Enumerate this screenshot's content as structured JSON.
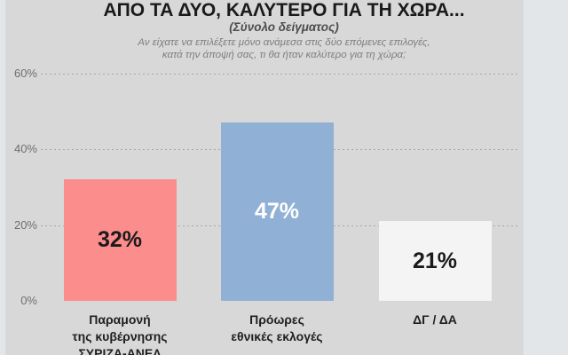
{
  "chart_data": {
    "type": "bar",
    "title": "ΑΠΟ ΤΑ ΔΥΟ, ΚΑΛΥΤΕΡΟ ΓΙΑ ΤΗ ΧΩΡΑ...",
    "subtitle": "(Σύνολο δείγματος)",
    "question_line1": "Αν είχατε να επιλέξετε μόνο ανάμεσα στις δύο επόμενες επιλογές,",
    "question_line2": "κατά την άποψή σας, τι θα ήταν καλύτερο για τη χώρα;",
    "categories": [
      "Παραμονή της κυβέρνησης ΣΥΡΙΖΑ-ΑΝΕΛ",
      "Πρόωρες εθνικές εκλογές",
      "ΔΓ / ΔΑ"
    ],
    "category_label_lines": [
      [
        "Παραμονή",
        "της κυβέρνησης",
        "ΣΥΡΙΖΑ-ΑΝΕΛ"
      ],
      [
        "Πρόωρες",
        "εθνικές εκλογές"
      ],
      [
        "ΔΓ / ΔΑ"
      ]
    ],
    "values": [
      32,
      47,
      21
    ],
    "value_labels": [
      "32%",
      "47%",
      "21%"
    ],
    "bar_colors": [
      "#fc8d8d",
      "#90b0d5",
      "#f4f4f4"
    ],
    "value_label_colors": [
      "#1a1a1a",
      "#ffffff",
      "#1a1a1a"
    ],
    "y_axis": {
      "ticks": [
        {
          "label": "60%",
          "value": 60
        },
        {
          "label": "40%",
          "value": 40
        },
        {
          "label": "20%",
          "value": 20
        },
        {
          "label": "0%",
          "value": 0
        }
      ],
      "ylim": [
        0,
        60
      ],
      "grid": "dashed-horizontal"
    },
    "legend": "none",
    "colors": {
      "slide_background": "#d8d8d8",
      "page_background": "#e3e6e9",
      "gridline": "#a8a8a8",
      "title_text": "#1a1a1a",
      "subtitle_text": "#4d4d4d",
      "question_text": "#7e7e7e",
      "axis_tick_text": "#6f6f6f",
      "category_text": "#1f1f1f"
    }
  }
}
